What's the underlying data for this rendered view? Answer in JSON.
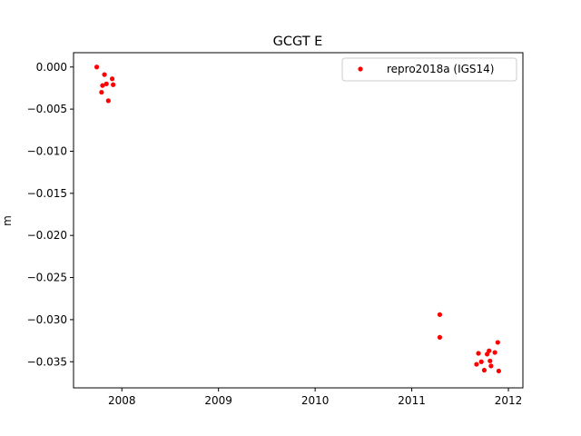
{
  "chart_data": {
    "type": "scatter",
    "title": "GCGT E",
    "xlabel": "",
    "ylabel": "m",
    "xlim": [
      2007.5,
      2012.15
    ],
    "ylim": [
      -0.0381,
      0.0017
    ],
    "x_ticks": [
      2008,
      2009,
      2010,
      2011,
      2012
    ],
    "x_tick_labels": [
      "2008",
      "2009",
      "2010",
      "2011",
      "2012"
    ],
    "y_ticks": [
      0.0,
      -0.005,
      -0.01,
      -0.015,
      -0.02,
      -0.025,
      -0.03,
      -0.035
    ],
    "y_tick_labels": [
      "0.000",
      "−0.005",
      "−0.010",
      "−0.015",
      "−0.020",
      "−0.025",
      "−0.030",
      "−0.035"
    ],
    "grid": false,
    "legend_position": "upper right",
    "series": [
      {
        "name": "repro2018a (IGS14)",
        "color": "#ff0000",
        "marker": "circle",
        "points": [
          [
            2007.74,
            0.0
          ],
          [
            2007.79,
            -0.003
          ],
          [
            2007.8,
            -0.0022
          ],
          [
            2007.82,
            -0.0009
          ],
          [
            2007.84,
            -0.002
          ],
          [
            2007.86,
            -0.004
          ],
          [
            2007.9,
            -0.0014
          ],
          [
            2007.91,
            -0.0021
          ],
          [
            2011.29,
            -0.0294
          ],
          [
            2011.29,
            -0.0321
          ],
          [
            2011.67,
            -0.0353
          ],
          [
            2011.69,
            -0.034
          ],
          [
            2011.72,
            -0.035
          ],
          [
            2011.75,
            -0.036
          ],
          [
            2011.78,
            -0.0341
          ],
          [
            2011.8,
            -0.0337
          ],
          [
            2011.81,
            -0.0349
          ],
          [
            2011.82,
            -0.0355
          ],
          [
            2011.86,
            -0.0339
          ],
          [
            2011.89,
            -0.0327
          ],
          [
            2011.9,
            -0.0361
          ]
        ]
      }
    ]
  }
}
